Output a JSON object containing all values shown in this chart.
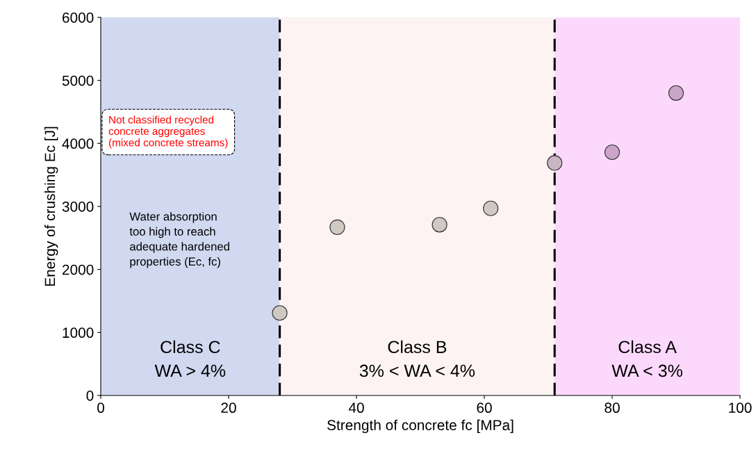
{
  "chart_data": {
    "type": "scatter",
    "xlabel": "Strength of concrete fc [MPa]",
    "ylabel": "Energy of crushing Ec [J]",
    "x": [
      28,
      37,
      53,
      61,
      71,
      80,
      90
    ],
    "series": [
      {
        "values": [
          1310,
          2670,
          2710,
          2970,
          3690,
          3860,
          4800
        ],
        "colors": [
          "#cfc9c4",
          "#cfc9c4",
          "#cfc9c4",
          "#cfc9c4",
          "#c9b5c4",
          "#c9a6c9",
          "#c9a6c9"
        ]
      }
    ],
    "marker": "circle",
    "xlim": [
      0,
      100
    ],
    "xticks": [
      0,
      20,
      40,
      60,
      80,
      100
    ],
    "ylim": [
      0,
      6000
    ],
    "yticks": [
      0,
      1000,
      2000,
      3000,
      4000,
      5000,
      6000
    ],
    "grid": false,
    "bands": [
      {
        "axis": "x",
        "from": 0,
        "to": 28,
        "label": "Class C\nWA > 4%",
        "color": "#d0d9f0"
      },
      {
        "axis": "x",
        "from": 28,
        "to": 71,
        "label": "Class B\n3% < WA < 4%",
        "color": "#fdf3f3"
      },
      {
        "axis": "x",
        "from": 71,
        "to": 100,
        "label": "Class A\nWA < 3%",
        "color": "#fcd9fc"
      }
    ],
    "ref_lines": [
      {
        "axis": "x",
        "value": 28,
        "line_style": "dashed",
        "color": "#000000"
      },
      {
        "axis": "x",
        "value": 71,
        "line_style": "dashed",
        "color": "#000000"
      }
    ],
    "annotations": [
      "Not classified recycled\nconcrete aggregates\n(mixed concrete streams)",
      "Water absorption\ntoo high to reach\nadequate hardened\nproperties (Ec, fc)"
    ]
  }
}
